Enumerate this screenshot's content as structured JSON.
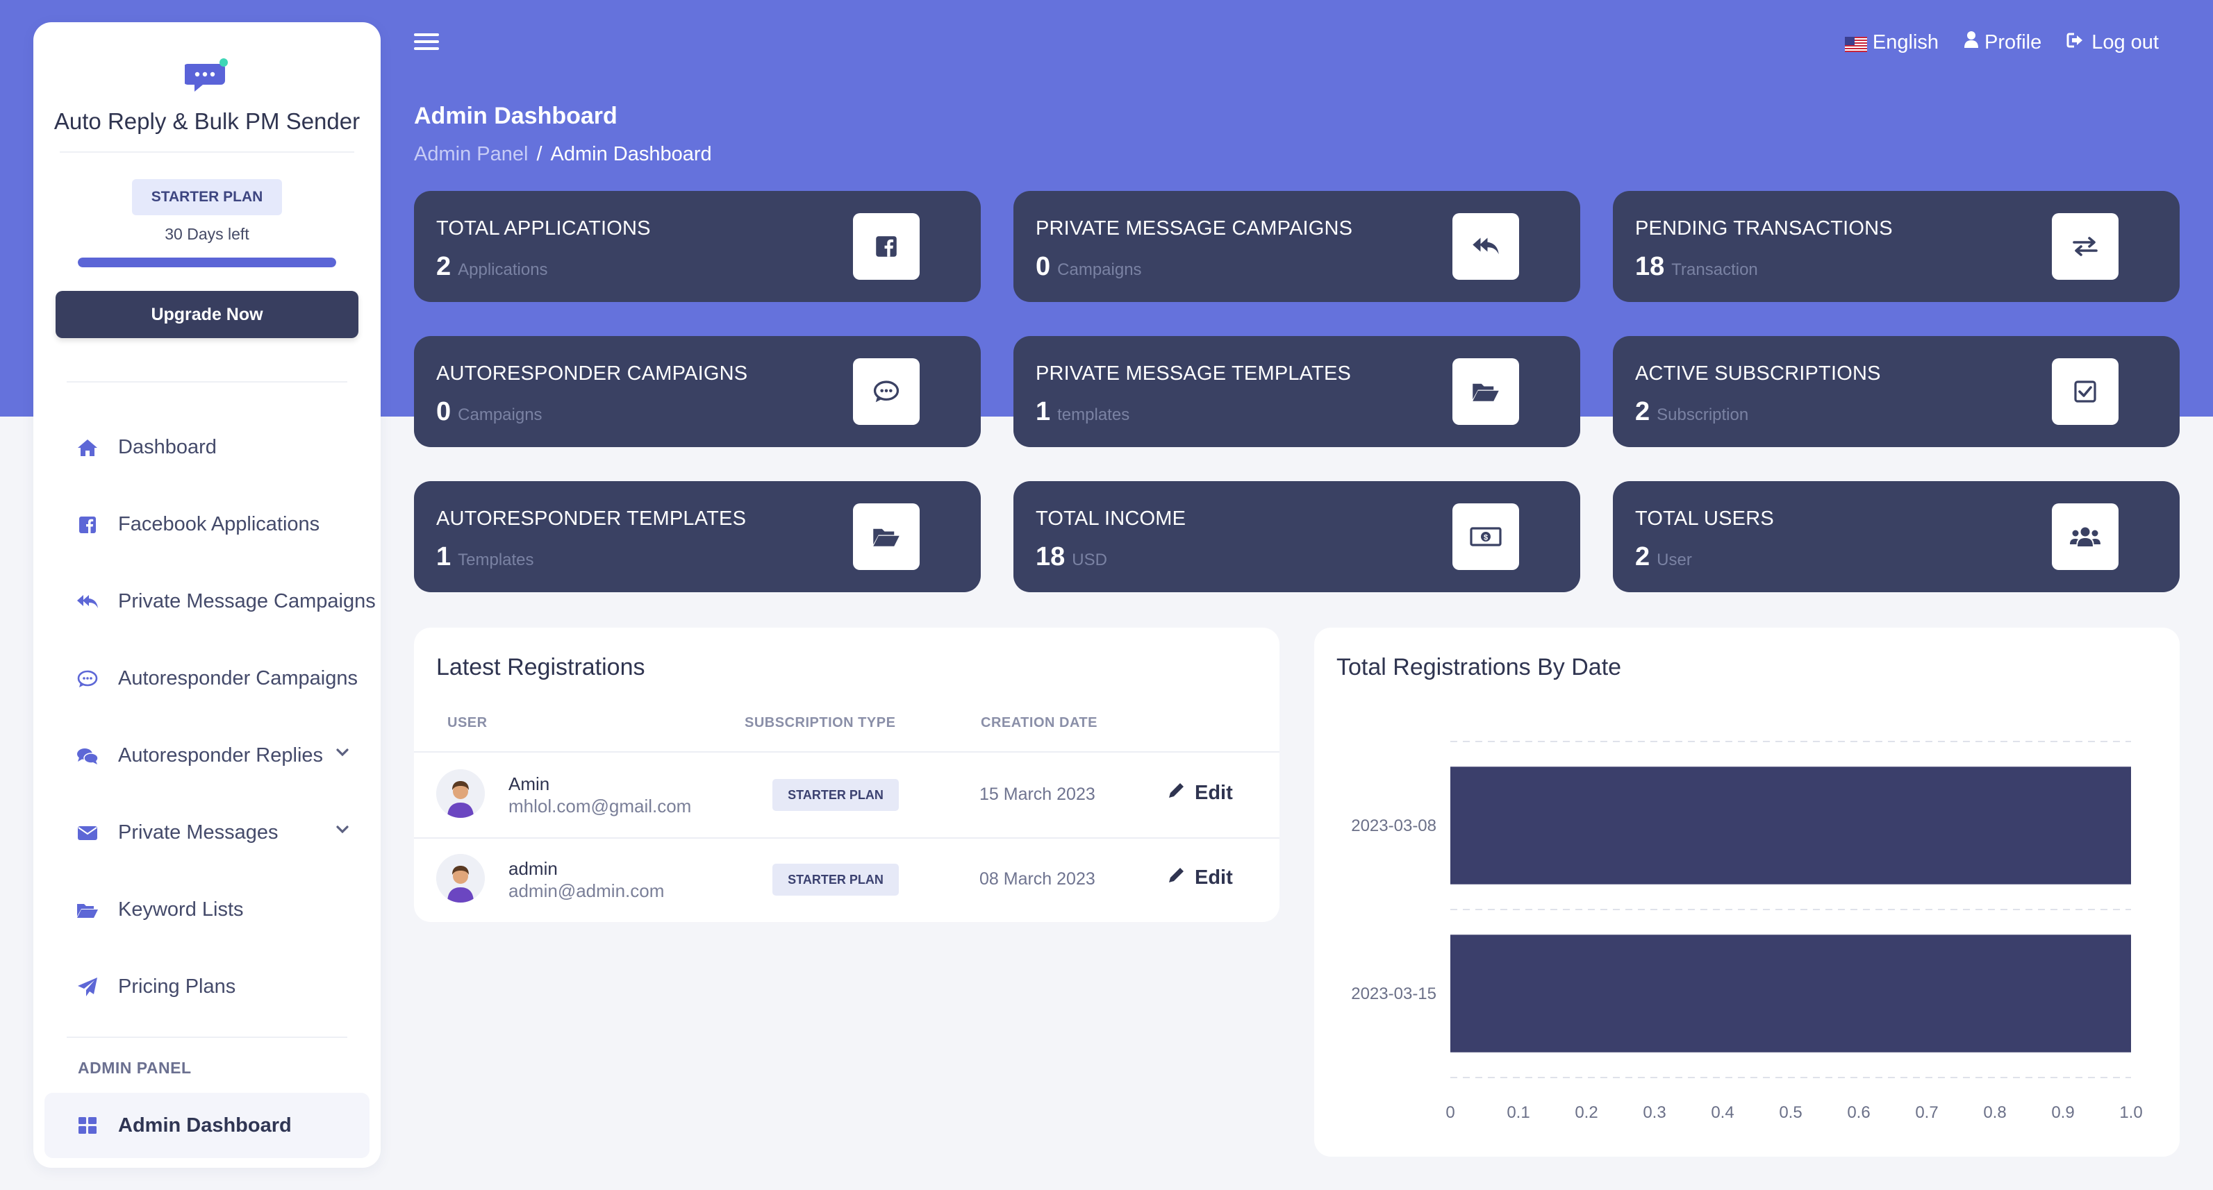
{
  "brand": {
    "title": "Auto Reply & Bulk PM Sender",
    "logo_icon": "chat-bubble-icon"
  },
  "plan": {
    "badge": "STARTER PLAN",
    "days_left": "30 Days left",
    "progress": 1.0,
    "upgrade_label": "Upgrade Now"
  },
  "nav": {
    "items": [
      {
        "label": "Dashboard",
        "icon": "home-icon"
      },
      {
        "label": "Facebook Applications",
        "icon": "facebook-icon"
      },
      {
        "label": "Private Message Campaigns",
        "icon": "reply-all-icon"
      },
      {
        "label": "Autoresponder Campaigns",
        "icon": "comment-icon"
      },
      {
        "label": "Autoresponder Replies",
        "icon": "comments-icon",
        "expandable": true
      },
      {
        "label": "Private Messages",
        "icon": "envelope-icon",
        "expandable": true
      },
      {
        "label": "Keyword Lists",
        "icon": "folder-open-icon"
      },
      {
        "label": "Pricing Plans",
        "icon": "paper-plane-icon"
      }
    ],
    "admin_heading": "ADMIN PANEL",
    "admin_items": [
      {
        "label": "Admin Dashboard",
        "icon": "grid-icon",
        "active": true
      }
    ]
  },
  "topbar": {
    "language": "English",
    "profile": "Profile",
    "logout": "Log out"
  },
  "header": {
    "title": "Admin Dashboard",
    "breadcrumb": [
      "Admin Panel",
      "Admin Dashboard"
    ]
  },
  "stats": [
    {
      "title": "TOTAL APPLICATIONS",
      "value": "2",
      "unit": "Applications",
      "icon": "facebook-icon"
    },
    {
      "title": "PRIVATE MESSAGE CAMPAIGNS",
      "value": "0",
      "unit": "Campaigns",
      "icon": "reply-all-icon"
    },
    {
      "title": "PENDING TRANSACTIONS",
      "value": "18",
      "unit": "Transaction",
      "icon": "exchange-icon"
    },
    {
      "title": "AUTORESPONDER CAMPAIGNS",
      "value": "0",
      "unit": "Campaigns",
      "icon": "comment-icon"
    },
    {
      "title": "PRIVATE MESSAGE TEMPLATES",
      "value": "1",
      "unit": "templates",
      "icon": "folder-open-icon"
    },
    {
      "title": "ACTIVE SUBSCRIPTIONS",
      "value": "2",
      "unit": "Subscription",
      "icon": "check-square-icon"
    },
    {
      "title": "AUTORESPONDER TEMPLATES",
      "value": "1",
      "unit": "Templates",
      "icon": "folder-open-icon"
    },
    {
      "title": "TOTAL INCOME",
      "value": "18",
      "unit": "USD",
      "icon": "money-bill-icon"
    },
    {
      "title": "TOTAL USERS",
      "value": "2",
      "unit": "User",
      "icon": "users-icon"
    }
  ],
  "registrations": {
    "title": "Latest Registrations",
    "columns": [
      "USER",
      "SUBSCRIPTION TYPE",
      "CREATION DATE"
    ],
    "rows": [
      {
        "name": "Amin",
        "email": "mhlol.com@gmail.com",
        "plan": "STARTER PLAN",
        "date": "15 March 2023",
        "action": "Edit"
      },
      {
        "name": "admin",
        "email": "admin@admin.com",
        "plan": "STARTER PLAN",
        "date": "08 March 2023",
        "action": "Edit"
      }
    ]
  },
  "chart_data": {
    "type": "bar",
    "orientation": "horizontal",
    "title": "Total Registrations By Date",
    "categories": [
      "2023-03-08",
      "2023-03-15"
    ],
    "values": [
      1,
      1
    ],
    "xlim": [
      0,
      1.0
    ],
    "xticks": [
      "0",
      "0.1",
      "0.2",
      "0.3",
      "0.4",
      "0.5",
      "0.6",
      "0.7",
      "0.8",
      "0.9",
      "1.0"
    ],
    "grid": true,
    "bar_color": "#3b3f6b"
  },
  "colors": {
    "accent": "#6572dc",
    "card_dark": "#3a4163",
    "sidebar_bg": "#ffffff"
  }
}
